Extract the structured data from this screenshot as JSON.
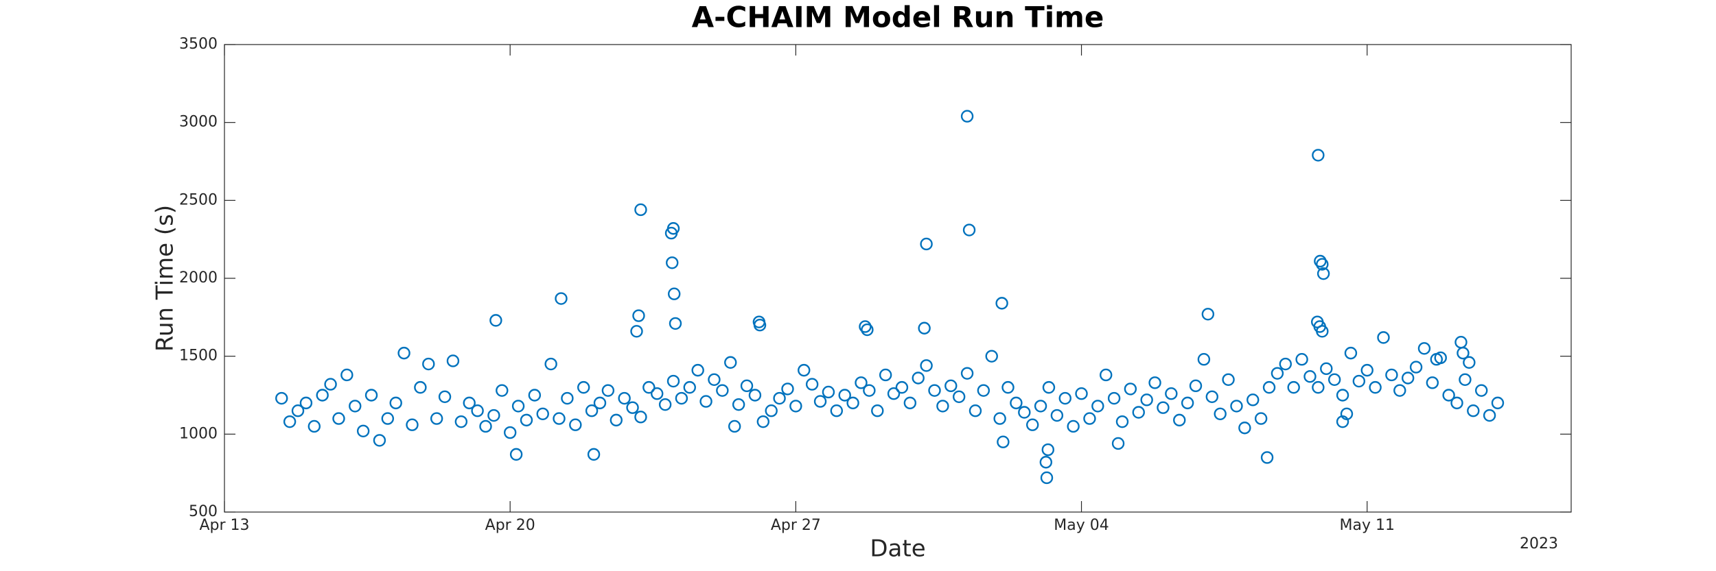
{
  "chart_data": {
    "type": "scatter",
    "title": "A-CHAIM Model Run Time",
    "x_label": "Date",
    "y_label": "Run Time (s)",
    "x_secondary_label": "2023",
    "color": "#0072bd",
    "grid": false,
    "xlim": [
      0,
      33
    ],
    "xticks": [
      {
        "value": 0,
        "label": "Apr 13"
      },
      {
        "value": 7,
        "label": "Apr 20"
      },
      {
        "value": 14,
        "label": "Apr 27"
      },
      {
        "value": 21,
        "label": "May 04"
      },
      {
        "value": 28,
        "label": "May 11"
      }
    ],
    "ylim": [
      500,
      3500
    ],
    "yticks": [
      500,
      1000,
      1500,
      2000,
      2500,
      3000,
      3500
    ],
    "x": [
      1.4,
      1.6,
      1.8,
      2.0,
      2.2,
      2.4,
      2.6,
      2.8,
      3.0,
      3.2,
      3.4,
      3.6,
      3.8,
      4.0,
      4.2,
      4.4,
      4.6,
      4.8,
      5.0,
      5.2,
      5.4,
      5.6,
      5.8,
      6.0,
      6.2,
      6.4,
      6.6,
      6.8,
      7.0,
      7.2,
      7.4,
      7.6,
      7.8,
      8.0,
      8.2,
      8.4,
      8.6,
      8.8,
      9.0,
      9.2,
      9.4,
      9.6,
      9.8,
      10.0,
      10.2,
      10.4,
      10.6,
      10.8,
      11.0,
      11.2,
      11.4,
      11.6,
      11.8,
      12.0,
      12.2,
      12.4,
      12.6,
      12.8,
      13.0,
      13.2,
      13.4,
      13.6,
      13.8,
      14.0,
      14.2,
      14.4,
      14.6,
      14.8,
      15.0,
      15.2,
      15.4,
      15.6,
      15.8,
      16.0,
      16.2,
      16.4,
      16.6,
      16.8,
      17.0,
      17.2,
      17.4,
      17.6,
      17.8,
      18.0,
      18.2,
      18.4,
      18.6,
      18.8,
      19.0,
      19.2,
      19.4,
      19.6,
      19.8,
      20.0,
      20.2,
      20.4,
      20.6,
      20.8,
      21.0,
      21.2,
      21.4,
      21.6,
      21.8,
      22.0,
      22.2,
      22.4,
      22.6,
      22.8,
      23.0,
      23.2,
      23.4,
      23.6,
      23.8,
      24.0,
      24.2,
      24.4,
      24.6,
      24.8,
      25.0,
      25.2,
      25.4,
      25.6,
      25.8,
      26.0,
      26.2,
      26.4,
      26.6,
      26.8,
      27.0,
      27.2,
      27.4,
      27.6,
      27.8,
      28.0,
      28.2,
      28.4,
      28.6,
      28.8,
      29.0,
      29.2,
      29.4,
      29.6,
      29.8,
      30.0,
      30.2,
      30.4,
      30.6,
      30.8,
      31.0,
      31.2,
      6.65,
      7.15,
      8.25,
      9.05,
      10.2,
      10.15,
      10.1,
      10.95,
      11.0,
      10.97,
      11.02,
      11.05,
      12.5,
      13.1,
      13.12,
      15.7,
      15.75,
      17.2,
      17.15,
      18.2,
      18.25,
      19.05,
      19.08,
      20.15,
      20.13,
      20.18,
      21.9,
      24.1,
      25.55,
      26.8,
      26.85,
      26.9,
      26.93,
      26.78,
      26.84,
      26.9,
      27.4,
      27.5,
      29.7,
      30.5,
      30.3,
      30.35
    ],
    "values": [
      1230,
      1080,
      1150,
      1200,
      1050,
      1250,
      1320,
      1100,
      1380,
      1180,
      1020,
      1250,
      960,
      1100,
      1200,
      1520,
      1060,
      1300,
      1450,
      1100,
      1240,
      1470,
      1080,
      1200,
      1150,
      1050,
      1120,
      1280,
      1010,
      1180,
      1090,
      1250,
      1130,
      1450,
      1100,
      1230,
      1060,
      1300,
      1150,
      1200,
      1280,
      1090,
      1230,
      1170,
      1110,
      1300,
      1260,
      1190,
      1340,
      1230,
      1300,
      1410,
      1210,
      1350,
      1280,
      1460,
      1190,
      1310,
      1250,
      1080,
      1150,
      1230,
      1290,
      1180,
      1410,
      1320,
      1210,
      1270,
      1150,
      1250,
      1200,
      1330,
      1280,
      1150,
      1380,
      1260,
      1300,
      1200,
      1360,
      1440,
      1280,
      1180,
      1310,
      1240,
      1390,
      1150,
      1280,
      1500,
      1100,
      1300,
      1200,
      1140,
      1060,
      1180,
      1300,
      1120,
      1230,
      1050,
      1260,
      1100,
      1180,
      1380,
      1230,
      1080,
      1290,
      1140,
      1220,
      1330,
      1170,
      1260,
      1090,
      1200,
      1310,
      1480,
      1240,
      1130,
      1350,
      1180,
      1040,
      1220,
      1100,
      1300,
      1390,
      1450,
      1300,
      1480,
      1370,
      1300,
      1420,
      1350,
      1250,
      1520,
      1340,
      1410,
      1300,
      1620,
      1380,
      1280,
      1360,
      1430,
      1550,
      1330,
      1490,
      1250,
      1200,
      1350,
      1150,
      1280,
      1120,
      1200,
      1730,
      870,
      1870,
      870,
      2440,
      1760,
      1660,
      2290,
      2320,
      2100,
      1900,
      1710,
      1050,
      1720,
      1700,
      1690,
      1670,
      2220,
      1680,
      3040,
      2310,
      1840,
      950,
      720,
      820,
      900,
      940,
      1770,
      850,
      2790,
      2110,
      2090,
      2030,
      1720,
      1690,
      1660,
      1080,
      1130,
      1480,
      1460,
      1590,
      1520
    ]
  }
}
